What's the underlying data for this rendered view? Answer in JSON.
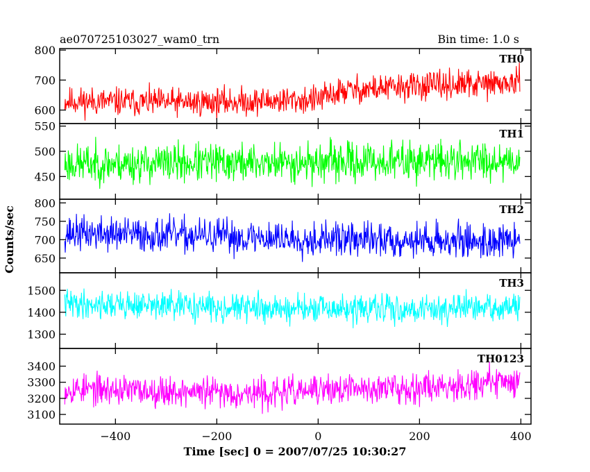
{
  "header": {
    "title": "ae070725103027_wam0_trn",
    "bin_time": "Bin time: 1.0 s"
  },
  "chart_data": {
    "type": "line",
    "xlabel": "Time [sec] 0 = 2007/07/25 10:30:27",
    "ylabel": "Counts/sec",
    "xlim": [
      -510,
      420
    ],
    "x_ticks": [
      -400,
      -200,
      0,
      200,
      400
    ],
    "x_range": [
      -500,
      398
    ],
    "grid": false,
    "panels": [
      {
        "name": "TH0",
        "color": "#ff0000",
        "ylim": [
          555,
          805
        ],
        "yticks": [
          600,
          700,
          800
        ],
        "trend": [
          [
            -500,
            630
          ],
          [
            -300,
            625
          ],
          [
            -150,
            628
          ],
          [
            0,
            635
          ],
          [
            50,
            665
          ],
          [
            200,
            680
          ],
          [
            398,
            690
          ]
        ],
        "noise": 55,
        "seed": 11
      },
      {
        "name": "TH1",
        "color": "#00ff00",
        "ylim": [
          405,
          555
        ],
        "yticks": [
          450,
          500,
          550
        ],
        "trend": [
          [
            -500,
            475
          ],
          [
            0,
            478
          ],
          [
            398,
            483
          ]
        ],
        "noise": 45,
        "seed": 23
      },
      {
        "name": "TH2",
        "color": "#0000ff",
        "ylim": [
          610,
          810
        ],
        "yticks": [
          650,
          700,
          750,
          800
        ],
        "trend": [
          [
            -500,
            718
          ],
          [
            0,
            702
          ],
          [
            398,
            695
          ]
        ],
        "noise": 55,
        "seed": 37
      },
      {
        "name": "TH3",
        "color": "#00ffff",
        "ylim": [
          1235,
          1580
        ],
        "yticks": [
          1300,
          1400,
          1500
        ],
        "trend": [
          [
            -500,
            1440
          ],
          [
            0,
            1412
          ],
          [
            398,
            1420
          ]
        ],
        "noise": 75,
        "seed": 41
      },
      {
        "name": "TH0123",
        "color": "#ff00ff",
        "ylim": [
          3040,
          3510
        ],
        "yticks": [
          3100,
          3200,
          3300,
          3400
        ],
        "trend": [
          [
            -500,
            3260
          ],
          [
            -100,
            3230
          ],
          [
            0,
            3250
          ],
          [
            200,
            3270
          ],
          [
            398,
            3310
          ]
        ],
        "noise": 110,
        "seed": 53
      }
    ]
  }
}
